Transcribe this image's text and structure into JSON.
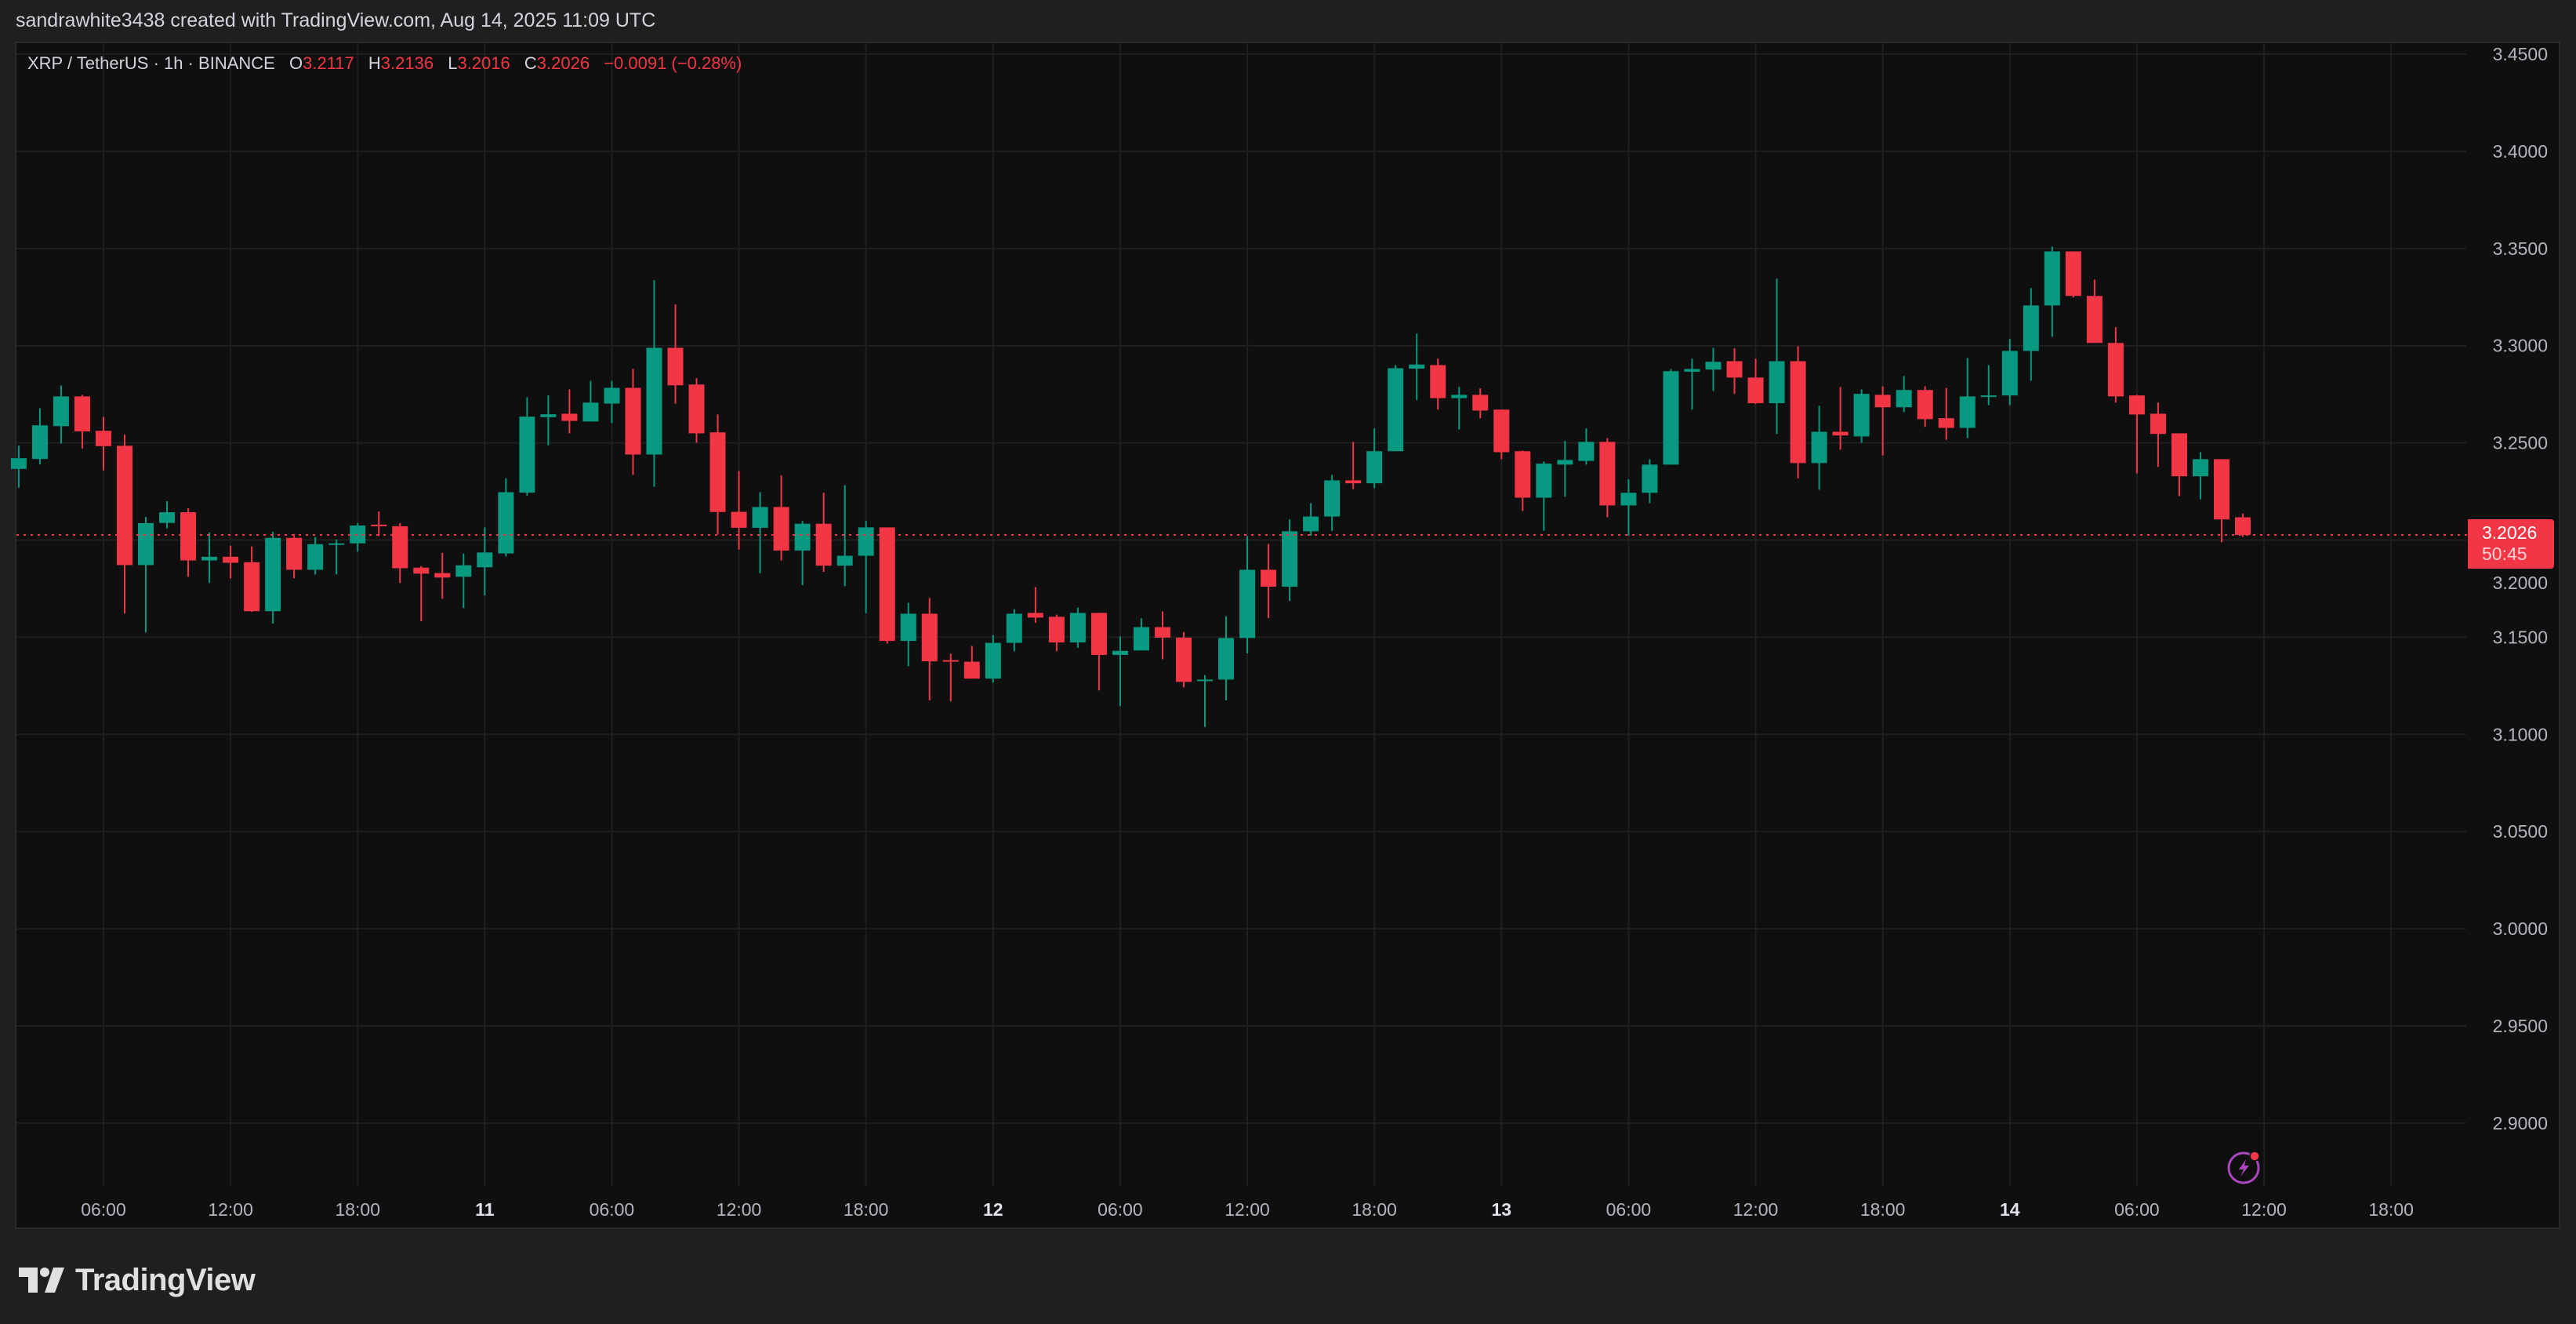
{
  "attribution": "sandrawhite3438 created with TradingView.com, Aug 14, 2025 11:09 UTC",
  "legend": {
    "symbol": "XRP / TetherUS · 1h · BINANCE",
    "o_label": "O",
    "open": "3.2117",
    "h_label": "H",
    "high": "3.2136",
    "l_label": "L",
    "low": "3.2016",
    "c_label": "C",
    "close": "3.2026",
    "change": "−0.0091 (−0.28%)"
  },
  "price_tag": {
    "price": "3.2026",
    "countdown": "50:45"
  },
  "logo_text": "TradingView",
  "icons": {
    "alert": "lightning-alert-icon",
    "logo": "tradingview-logo-icon"
  },
  "colors": {
    "up": "#089981",
    "down": "#f23645",
    "background": "#0f0f0f",
    "grid": "#1f1f1f",
    "alert": "#ab47bc"
  },
  "chart_data": {
    "type": "candlestick",
    "interval": "1h",
    "ylim": [
      2.87,
      3.46
    ],
    "grid": true,
    "last_price": 3.2026,
    "y_ticks": [
      "2.9000",
      "2.9500",
      "3.0000",
      "3.0500",
      "3.1000",
      "3.1500",
      "3.2000",
      "3.2500",
      "3.3000",
      "3.3500",
      "3.4000",
      "3.4500"
    ],
    "x_ticks": [
      {
        "label": "06:00",
        "time": "2025-08-10 06:00",
        "day": false
      },
      {
        "label": "12:00",
        "time": "2025-08-10 12:00",
        "day": false
      },
      {
        "label": "18:00",
        "time": "2025-08-10 18:00",
        "day": false
      },
      {
        "label": "11",
        "time": "2025-08-11 00:00",
        "day": true
      },
      {
        "label": "06:00",
        "time": "2025-08-11 06:00",
        "day": false
      },
      {
        "label": "12:00",
        "time": "2025-08-11 12:00",
        "day": false
      },
      {
        "label": "18:00",
        "time": "2025-08-11 18:00",
        "day": false
      },
      {
        "label": "12",
        "time": "2025-08-12 00:00",
        "day": true
      },
      {
        "label": "06:00",
        "time": "2025-08-12 06:00",
        "day": false
      },
      {
        "label": "12:00",
        "time": "2025-08-12 12:00",
        "day": false
      },
      {
        "label": "18:00",
        "time": "2025-08-12 18:00",
        "day": false
      },
      {
        "label": "13",
        "time": "2025-08-13 00:00",
        "day": true
      },
      {
        "label": "06:00",
        "time": "2025-08-13 06:00",
        "day": false
      },
      {
        "label": "12:00",
        "time": "2025-08-13 12:00",
        "day": false
      },
      {
        "label": "18:00",
        "time": "2025-08-13 18:00",
        "day": false
      },
      {
        "label": "14",
        "time": "2025-08-14 00:00",
        "day": true
      },
      {
        "label": "06:00",
        "time": "2025-08-14 06:00",
        "day": false
      },
      {
        "label": "12:00",
        "time": "2025-08-14 12:00",
        "day": false
      },
      {
        "label": "18:00",
        "time": "2025-08-14 18:00",
        "day": false
      }
    ],
    "columns": [
      "time",
      "open",
      "high",
      "low",
      "close"
    ],
    "candles": [
      [
        "2025-08-10 02:00",
        3.2366,
        3.2485,
        3.2269,
        3.2421
      ],
      [
        "2025-08-10 03:00",
        3.2417,
        3.2678,
        3.2389,
        3.259
      ],
      [
        "2025-08-10 04:00",
        3.2586,
        3.2795,
        3.2497,
        3.2739
      ],
      [
        "2025-08-10 05:00",
        3.2739,
        3.2747,
        3.2471,
        3.2559
      ],
      [
        "2025-08-10 06:00",
        3.2562,
        3.2634,
        3.2358,
        3.2483
      ],
      [
        "2025-08-10 07:00",
        3.2485,
        3.2542,
        3.1622,
        3.1871
      ],
      [
        "2025-08-10 08:00",
        3.1871,
        3.2119,
        3.1525,
        3.2087
      ],
      [
        "2025-08-10 09:00",
        3.2088,
        3.22,
        3.206,
        3.2143
      ],
      [
        "2025-08-10 10:00",
        3.2143,
        3.2164,
        3.1811,
        3.1895
      ],
      [
        "2025-08-10 11:00",
        3.1895,
        3.2039,
        3.1779,
        3.1914
      ],
      [
        "2025-08-10 12:00",
        3.1914,
        3.1971,
        3.1803,
        3.1883
      ],
      [
        "2025-08-10 13:00",
        3.1886,
        3.1967,
        3.163,
        3.1634
      ],
      [
        "2025-08-10 14:00",
        3.1634,
        3.2043,
        3.157,
        3.2011
      ],
      [
        "2025-08-10 15:00",
        3.2011,
        3.2031,
        3.1803,
        3.1847
      ],
      [
        "2025-08-10 16:00",
        3.1847,
        3.2015,
        3.1823,
        3.1979
      ],
      [
        "2025-08-10 17:00",
        3.1979,
        3.2003,
        3.1823,
        3.1983
      ],
      [
        "2025-08-10 18:00",
        3.1983,
        3.2087,
        3.194,
        3.2075
      ],
      [
        "2025-08-10 19:00",
        3.2079,
        3.2147,
        3.202,
        3.2071
      ],
      [
        "2025-08-10 20:00",
        3.2071,
        3.2087,
        3.1779,
        3.1855
      ],
      [
        "2025-08-10 21:00",
        3.1858,
        3.1866,
        3.1582,
        3.1827
      ],
      [
        "2025-08-10 22:00",
        3.183,
        3.1934,
        3.1698,
        3.1807
      ],
      [
        "2025-08-10 23:00",
        3.1811,
        3.193,
        3.165,
        3.187
      ],
      [
        "2025-08-11 00:00",
        3.186,
        3.2065,
        3.1715,
        3.1936
      ],
      [
        "2025-08-11 01:00",
        3.1931,
        3.2318,
        3.1916,
        3.2246
      ],
      [
        "2025-08-11 02:00",
        3.2244,
        3.2735,
        3.2228,
        3.2635
      ],
      [
        "2025-08-11 03:00",
        3.2632,
        3.2744,
        3.2487,
        3.2647
      ],
      [
        "2025-08-11 04:00",
        3.265,
        3.2775,
        3.2549,
        3.2613
      ],
      [
        "2025-08-11 05:00",
        3.261,
        3.2819,
        3.261,
        3.2707
      ],
      [
        "2025-08-11 06:00",
        3.2702,
        3.2819,
        3.2602,
        3.2783
      ],
      [
        "2025-08-11 07:00",
        3.2783,
        3.288,
        3.2335,
        3.244
      ],
      [
        "2025-08-11 08:00",
        3.244,
        3.3337,
        3.2274,
        3.2989
      ],
      [
        "2025-08-11 09:00",
        3.2989,
        3.3212,
        3.2702,
        3.2796
      ],
      [
        "2025-08-11 10:00",
        3.28,
        3.2833,
        3.2501,
        3.2549
      ],
      [
        "2025-08-11 11:00",
        3.2554,
        3.2646,
        3.2028,
        3.2144
      ],
      [
        "2025-08-11 12:00",
        3.2145,
        3.2355,
        3.1951,
        3.2063
      ],
      [
        "2025-08-11 13:00",
        3.2063,
        3.2246,
        3.1829,
        3.217
      ],
      [
        "2025-08-11 14:00",
        3.217,
        3.2332,
        3.1895,
        3.1946
      ],
      [
        "2025-08-11 15:00",
        3.1946,
        3.2098,
        3.1768,
        3.2084
      ],
      [
        "2025-08-11 16:00",
        3.2084,
        3.2243,
        3.1836,
        3.1868
      ],
      [
        "2025-08-11 17:00",
        3.1868,
        3.2282,
        3.1763,
        3.1919
      ],
      [
        "2025-08-11 18:00",
        3.1919,
        3.2098,
        3.1623,
        3.2065
      ],
      [
        "2025-08-11 19:00",
        3.2065,
        3.2065,
        3.1468,
        3.1481
      ],
      [
        "2025-08-11 20:00",
        3.1481,
        3.1677,
        3.1351,
        3.1621
      ],
      [
        "2025-08-11 21:00",
        3.1621,
        3.1702,
        3.1175,
        3.1376
      ],
      [
        "2025-08-11 22:00",
        3.1382,
        3.1415,
        3.117,
        3.1376
      ],
      [
        "2025-08-11 23:00",
        3.1374,
        3.1455,
        3.1287,
        3.1287
      ],
      [
        "2025-08-12 00:00",
        3.1287,
        3.1511,
        3.1267,
        3.1471
      ],
      [
        "2025-08-12 01:00",
        3.1471,
        3.1644,
        3.1428,
        3.1621
      ],
      [
        "2025-08-12 02:00",
        3.1625,
        3.1758,
        3.1574,
        3.1601
      ],
      [
        "2025-08-12 03:00",
        3.1605,
        3.1616,
        3.1428,
        3.1473
      ],
      [
        "2025-08-12 04:00",
        3.1473,
        3.1653,
        3.1445,
        3.1625
      ],
      [
        "2025-08-12 05:00",
        3.1625,
        3.1625,
        3.1226,
        3.1409
      ],
      [
        "2025-08-12 06:00",
        3.1409,
        3.1504,
        3.1145,
        3.143
      ],
      [
        "2025-08-12 07:00",
        3.1432,
        3.1597,
        3.1432,
        3.1552
      ],
      [
        "2025-08-12 08:00",
        3.1552,
        3.1633,
        3.1387,
        3.1498
      ],
      [
        "2025-08-12 09:00",
        3.1498,
        3.1527,
        3.1242,
        3.127
      ],
      [
        "2025-08-12 10:00",
        3.1275,
        3.1305,
        3.1038,
        3.1282
      ],
      [
        "2025-08-12 11:00",
        3.1282,
        3.1608,
        3.1175,
        3.1496
      ],
      [
        "2025-08-12 12:00",
        3.1496,
        3.202,
        3.1417,
        3.1847
      ],
      [
        "2025-08-12 13:00",
        3.1847,
        3.198,
        3.1598,
        3.176
      ],
      [
        "2025-08-12 14:00",
        3.176,
        3.2106,
        3.1687,
        3.2045
      ],
      [
        "2025-08-12 15:00",
        3.2045,
        3.219,
        3.2022,
        3.2121
      ],
      [
        "2025-08-12 16:00",
        3.2121,
        3.2335,
        3.2047,
        3.2307
      ],
      [
        "2025-08-12 17:00",
        3.2307,
        3.2505,
        3.2262,
        3.2292
      ],
      [
        "2025-08-12 18:00",
        3.2292,
        3.2574,
        3.2267,
        3.2457
      ],
      [
        "2025-08-12 19:00",
        3.2457,
        3.29,
        3.2457,
        3.2884
      ],
      [
        "2025-08-12 20:00",
        3.2882,
        3.3062,
        3.272,
        3.2903
      ],
      [
        "2025-08-12 21:00",
        3.29,
        3.2933,
        3.2671,
        3.273
      ],
      [
        "2025-08-12 22:00",
        3.273,
        3.2788,
        3.2569,
        3.2747
      ],
      [
        "2025-08-12 23:00",
        3.2747,
        3.278,
        3.2627,
        3.2666
      ],
      [
        "2025-08-13 00:00",
        3.2671,
        3.2671,
        3.2416,
        3.2452
      ],
      [
        "2025-08-13 01:00",
        3.2457,
        3.246,
        3.215,
        3.2218
      ],
      [
        "2025-08-13 02:00",
        3.2218,
        3.2404,
        3.2048,
        3.2393
      ],
      [
        "2025-08-13 03:00",
        3.2388,
        3.251,
        3.2223,
        3.2412
      ],
      [
        "2025-08-13 04:00",
        3.2407,
        3.2574,
        3.2388,
        3.2505
      ],
      [
        "2025-08-13 05:00",
        3.2505,
        3.2524,
        3.2117,
        3.2178
      ],
      [
        "2025-08-13 06:00",
        3.2178,
        3.2312,
        3.2022,
        3.2243
      ],
      [
        "2025-08-13 07:00",
        3.2243,
        3.2416,
        3.219,
        3.2388
      ],
      [
        "2025-08-13 08:00",
        3.2388,
        3.288,
        3.2388,
        3.2869
      ],
      [
        "2025-08-13 09:00",
        3.2866,
        3.2933,
        3.2671,
        3.288
      ],
      [
        "2025-08-13 10:00",
        3.2877,
        3.2989,
        3.2767,
        3.2917
      ],
      [
        "2025-08-13 11:00",
        3.292,
        3.2986,
        3.2752,
        3.2836
      ],
      [
        "2025-08-13 12:00",
        3.2836,
        3.2933,
        3.2699,
        3.2704
      ],
      [
        "2025-08-13 13:00",
        3.2704,
        3.3345,
        3.2546,
        3.292
      ],
      [
        "2025-08-13 14:00",
        3.292,
        3.2997,
        3.2318,
        3.2396
      ],
      [
        "2025-08-13 15:00",
        3.2396,
        3.2691,
        3.2259,
        3.2557
      ],
      [
        "2025-08-13 16:00",
        3.2557,
        3.2788,
        3.2465,
        3.2538
      ],
      [
        "2025-08-13 17:00",
        3.2533,
        3.2775,
        3.2501,
        3.2752
      ],
      [
        "2025-08-13 18:00",
        3.2747,
        3.2791,
        3.2435,
        3.2683
      ],
      [
        "2025-08-13 19:00",
        3.2683,
        3.2844,
        3.2658,
        3.2772
      ],
      [
        "2025-08-13 20:00",
        3.2772,
        3.2791,
        3.2582,
        3.2622
      ],
      [
        "2025-08-13 21:00",
        3.2627,
        3.2783,
        3.2516,
        3.2577
      ],
      [
        "2025-08-13 22:00",
        3.2577,
        3.2936,
        3.2524,
        3.2739
      ],
      [
        "2025-08-13 23:00",
        3.2739,
        3.29,
        3.2694,
        3.2744
      ],
      [
        "2025-08-14 00:00",
        3.2744,
        3.3034,
        3.2694,
        3.2973
      ],
      [
        "2025-08-14 01:00",
        3.2973,
        3.3296,
        3.2819,
        3.3207
      ],
      [
        "2025-08-14 02:00",
        3.3207,
        3.351,
        3.3045,
        3.3485
      ],
      [
        "2025-08-14 03:00",
        3.3485,
        3.3485,
        3.3248,
        3.3256
      ],
      [
        "2025-08-14 04:00",
        3.3256,
        3.334,
        3.3014,
        3.3014
      ],
      [
        "2025-08-14 05:00",
        3.3014,
        3.3095,
        3.2707,
        3.2739
      ],
      [
        "2025-08-14 06:00",
        3.2744,
        3.2747,
        3.2343,
        3.2646
      ],
      [
        "2025-08-14 07:00",
        3.265,
        3.2707,
        3.2376,
        3.2546
      ],
      [
        "2025-08-14 08:00",
        3.2549,
        3.2549,
        3.2226,
        3.2328
      ],
      [
        "2025-08-14 09:00",
        3.2328,
        3.2452,
        3.221,
        3.2416
      ],
      [
        "2025-08-14 10:00",
        3.2416,
        3.2416,
        3.1989,
        3.2106
      ],
      [
        "2025-08-14 11:00",
        3.2117,
        3.2136,
        3.2016,
        3.2026
      ]
    ]
  }
}
